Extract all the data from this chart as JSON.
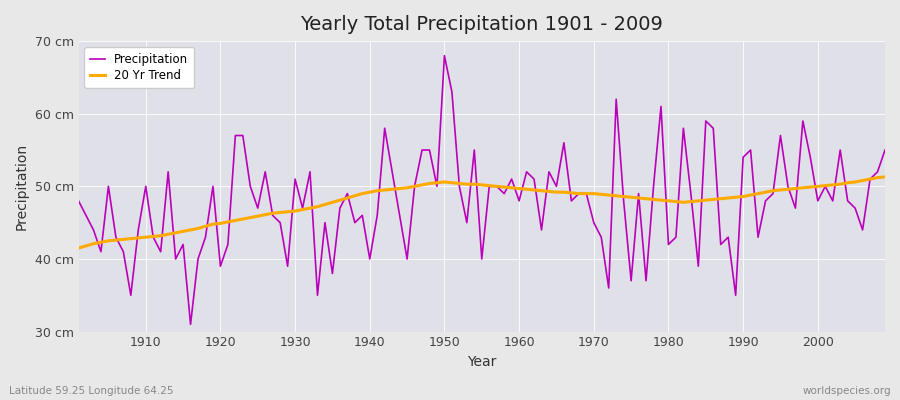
{
  "title": "Yearly Total Precipitation 1901 - 2009",
  "ylabel": "Precipitation",
  "xlabel": "Year",
  "footnote_left": "Latitude 59.25 Longitude 64.25",
  "footnote_right": "worldspecies.org",
  "legend_labels": [
    "Precipitation",
    "20 Yr Trend"
  ],
  "precip_color": "#bb00bb",
  "trend_color": "#ffaa00",
  "bg_color": "#e8e8e8",
  "plot_bg_color": "#e0e0e8",
  "ylim": [
    30,
    70
  ],
  "yticks": [
    30,
    40,
    50,
    60,
    70
  ],
  "ytick_labels": [
    "30 cm",
    "40 cm",
    "50 cm",
    "60 cm",
    "70 cm"
  ],
  "years": [
    1901,
    1902,
    1903,
    1904,
    1905,
    1906,
    1907,
    1908,
    1909,
    1910,
    1911,
    1912,
    1913,
    1914,
    1915,
    1916,
    1917,
    1918,
    1919,
    1920,
    1921,
    1922,
    1923,
    1924,
    1925,
    1926,
    1927,
    1928,
    1929,
    1930,
    1931,
    1932,
    1933,
    1934,
    1935,
    1936,
    1937,
    1938,
    1939,
    1940,
    1941,
    1942,
    1943,
    1944,
    1945,
    1946,
    1947,
    1948,
    1949,
    1950,
    1951,
    1952,
    1953,
    1954,
    1955,
    1956,
    1957,
    1958,
    1959,
    1960,
    1961,
    1962,
    1963,
    1964,
    1965,
    1966,
    1967,
    1968,
    1969,
    1970,
    1971,
    1972,
    1973,
    1974,
    1975,
    1976,
    1977,
    1978,
    1979,
    1980,
    1981,
    1982,
    1983,
    1984,
    1985,
    1986,
    1987,
    1988,
    1989,
    1990,
    1991,
    1992,
    1993,
    1994,
    1995,
    1996,
    1997,
    1998,
    1999,
    2000,
    2001,
    2002,
    2003,
    2004,
    2005,
    2006,
    2007,
    2008,
    2009
  ],
  "precip": [
    48,
    46,
    44,
    41,
    50,
    43,
    41,
    35,
    44,
    50,
    43,
    41,
    52,
    40,
    42,
    31,
    40,
    43,
    50,
    39,
    42,
    57,
    57,
    50,
    47,
    52,
    46,
    45,
    39,
    51,
    47,
    52,
    35,
    45,
    38,
    47,
    49,
    45,
    46,
    40,
    46,
    58,
    52,
    46,
    40,
    50,
    55,
    55,
    50,
    68,
    63,
    50,
    45,
    55,
    40,
    50,
    50,
    49,
    51,
    48,
    52,
    51,
    44,
    52,
    50,
    56,
    48,
    49,
    49,
    45,
    43,
    36,
    62,
    48,
    37,
    49,
    37,
    50,
    61,
    42,
    43,
    58,
    49,
    39,
    59,
    58,
    42,
    43,
    35,
    54,
    55,
    43,
    48,
    49,
    57,
    50,
    47,
    59,
    54,
    48,
    50,
    48,
    55,
    48,
    47,
    44,
    51,
    52,
    55
  ],
  "trend": [
    41.5,
    41.8,
    42.1,
    42.3,
    42.5,
    42.6,
    42.7,
    42.8,
    42.9,
    43.0,
    43.1,
    43.2,
    43.4,
    43.6,
    43.8,
    44.0,
    44.2,
    44.5,
    44.8,
    44.9,
    45.1,
    45.3,
    45.5,
    45.7,
    45.9,
    46.1,
    46.3,
    46.4,
    46.5,
    46.6,
    46.8,
    47.0,
    47.2,
    47.5,
    47.8,
    48.1,
    48.4,
    48.7,
    49.0,
    49.2,
    49.4,
    49.5,
    49.6,
    49.7,
    49.8,
    50.0,
    50.2,
    50.4,
    50.5,
    50.6,
    50.5,
    50.4,
    50.3,
    50.3,
    50.2,
    50.1,
    50.0,
    49.9,
    49.8,
    49.7,
    49.6,
    49.5,
    49.4,
    49.3,
    49.2,
    49.2,
    49.1,
    49.0,
    49.0,
    49.0,
    48.9,
    48.8,
    48.7,
    48.6,
    48.5,
    48.4,
    48.3,
    48.2,
    48.1,
    48.0,
    47.9,
    47.8,
    47.9,
    48.0,
    48.1,
    48.2,
    48.3,
    48.4,
    48.5,
    48.6,
    48.8,
    49.0,
    49.2,
    49.4,
    49.5,
    49.6,
    49.7,
    49.8,
    49.9,
    50.0,
    50.1,
    50.2,
    50.3,
    50.5,
    50.6,
    50.8,
    51.0,
    51.2,
    51.3
  ]
}
